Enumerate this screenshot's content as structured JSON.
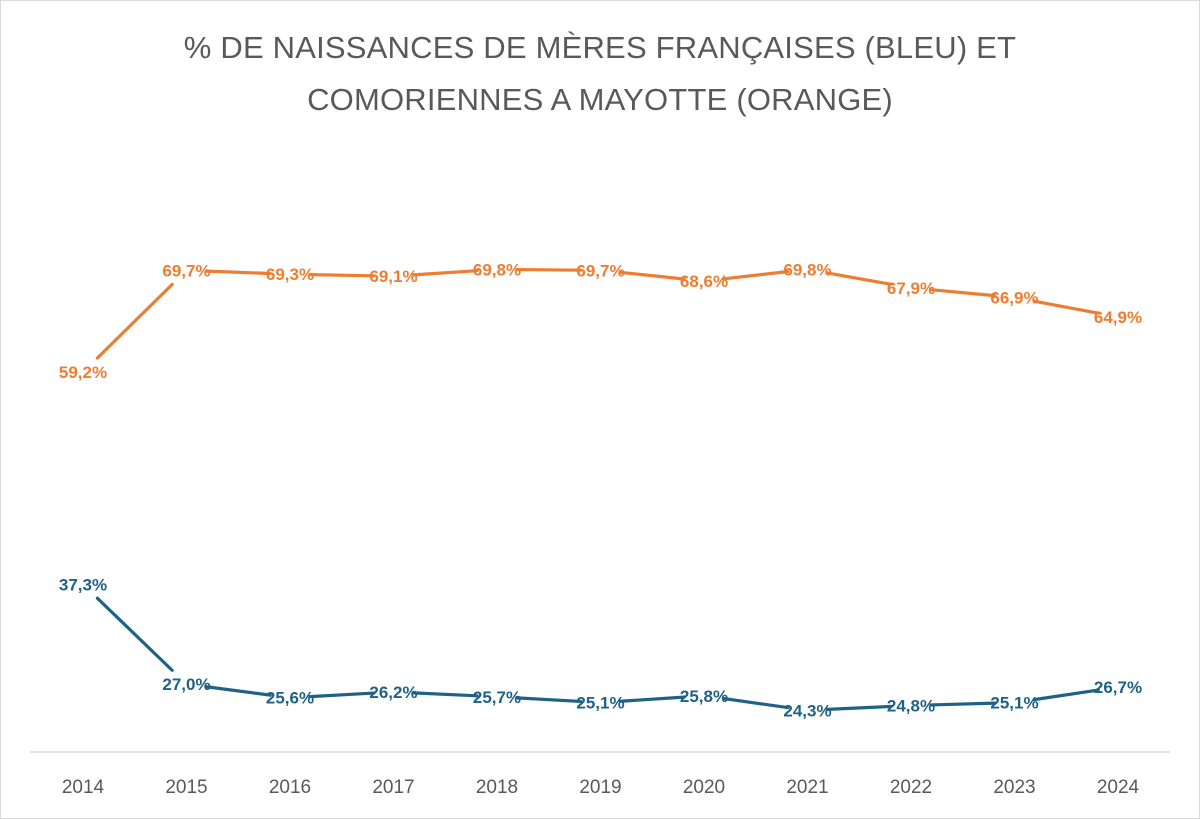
{
  "chart_data": {
    "type": "line",
    "title": "% DE NAISSANCES DE MÈRES FRANÇAISES (BLEU) ET COMORIENNES A MAYOTTE (ORANGE)",
    "title_lines": [
      "% DE NAISSANCES DE MÈRES FRANÇAISES (BLEU) ET",
      "COMORIENNES A MAYOTTE (ORANGE)"
    ],
    "categories": [
      "2014",
      "2015",
      "2016",
      "2017",
      "2018",
      "2019",
      "2020",
      "2021",
      "2022",
      "2023",
      "2024"
    ],
    "xlabel": "",
    "ylabel": "",
    "ylim": [
      20,
      75
    ],
    "grid": false,
    "legend": "none",
    "series": [
      {
        "name": "Mères comoriennes",
        "color": "#ED7D31",
        "values": [
          59.2,
          69.7,
          69.3,
          69.1,
          69.8,
          69.7,
          68.6,
          69.8,
          67.9,
          66.9,
          64.9
        ],
        "labels": [
          "59,2%",
          "69,7%",
          "69,3%",
          "69,1%",
          "69,8%",
          "69,7%",
          "68,6%",
          "69,8%",
          "67,9%",
          "66,9%",
          "64,9%"
        ]
      },
      {
        "name": "Mères françaises",
        "color": "#1F6286",
        "values": [
          37.3,
          27.0,
          25.6,
          26.2,
          25.7,
          25.1,
          25.8,
          24.3,
          24.8,
          25.1,
          26.7
        ],
        "labels": [
          "37,3%",
          "27,0%",
          "25,6%",
          "26,2%",
          "25,7%",
          "25,1%",
          "25,8%",
          "24,3%",
          "24,8%",
          "25,1%",
          "26,7%"
        ]
      }
    ]
  }
}
